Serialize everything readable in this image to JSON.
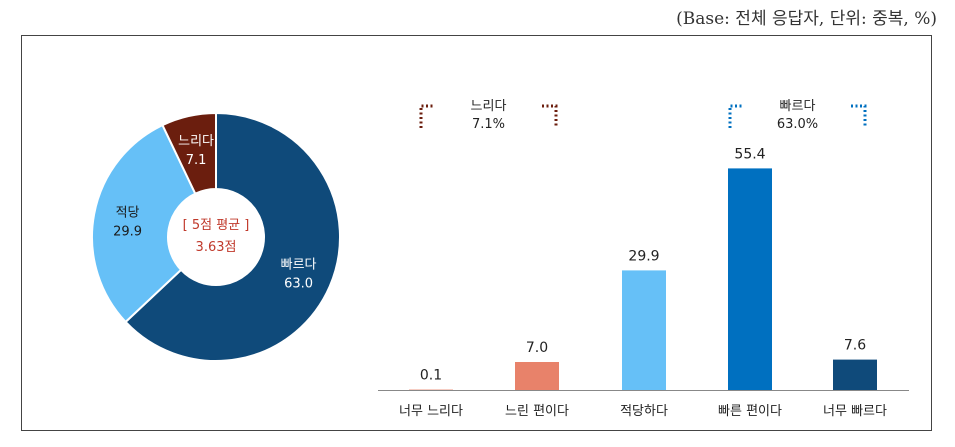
{
  "base_note": "(Base: 전체 응답자, 단위: 중복, %)",
  "chart_data": [
    {
      "type": "pie",
      "variant": "donut",
      "slices": [
        {
          "label": "빠르다",
          "value": 63.0,
          "color": "#0f4a7a",
          "display": "63.0"
        },
        {
          "label": "적당",
          "value": 29.9,
          "color": "#66c0f7",
          "display": "29.9"
        },
        {
          "label": "느리다",
          "value": 7.1,
          "color": "#6b1e0e",
          "display": "7.1"
        }
      ],
      "center_title": "[ 5점 평균 ]",
      "center_value": "3.63점",
      "center_color": "#c0392b"
    },
    {
      "type": "bar",
      "categories": [
        "너무 느리다",
        "느린 편이다",
        "적당하다",
        "빠른 편이다",
        "너무 빠르다"
      ],
      "values": [
        0.1,
        7.0,
        29.9,
        55.4,
        7.6
      ],
      "value_labels": [
        "0.1",
        "7.0",
        "29.9",
        "55.4",
        "7.6"
      ],
      "colors": [
        "#e8826a",
        "#e8826a",
        "#66c0f7",
        "#0070c0",
        "#0f4a7a"
      ],
      "groups": [
        {
          "name": "느리다",
          "value_text": "7.1%",
          "color": "#6b1e0e"
        },
        {
          "name": "빠르다",
          "value_text": "63.0%",
          "color": "#0070c0"
        }
      ],
      "ylim": [
        0,
        60
      ]
    }
  ]
}
